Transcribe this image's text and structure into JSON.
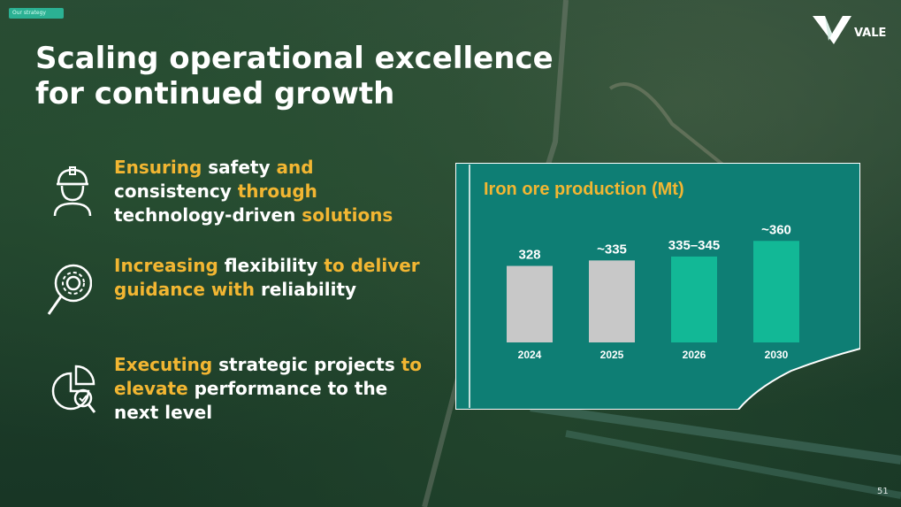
{
  "tag": "Our strategy",
  "title": "Scaling operational excellence for continued growth",
  "logo": {
    "text": "VALE"
  },
  "items": [
    {
      "segments": [
        {
          "text": "Ensuring ",
          "hl": true
        },
        {
          "text": "safety ",
          "hl": false
        },
        {
          "text": "and ",
          "hl": true
        },
        {
          "text": "consistency ",
          "hl": false
        },
        {
          "text": "through ",
          "hl": true
        },
        {
          "text": "technology-driven ",
          "hl": false
        },
        {
          "text": "solutions",
          "hl": true
        }
      ],
      "icon": "worker-helmet-icon"
    },
    {
      "segments": [
        {
          "text": "Increasing ",
          "hl": true
        },
        {
          "text": "flexibility ",
          "hl": false
        },
        {
          "text": "to deliver guidance with ",
          "hl": true
        },
        {
          "text": "reliability",
          "hl": false
        }
      ],
      "icon": "gear-magnifier-icon"
    },
    {
      "segments": [
        {
          "text": "Executing ",
          "hl": true
        },
        {
          "text": "strategic projects ",
          "hl": false
        },
        {
          "text": "to elevate ",
          "hl": true
        },
        {
          "text": "performance to the next level",
          "hl": false
        }
      ],
      "icon": "pie-chart-check-icon"
    }
  ],
  "chart_data": {
    "type": "bar",
    "title": "Iron ore production (Mt)",
    "categories": [
      "2024",
      "2025",
      "2026",
      "2030"
    ],
    "values": [
      328,
      335,
      340,
      360
    ],
    "labels": [
      "328",
      "~335",
      "335–345",
      "~360"
    ],
    "colors": [
      "#c8c8c8",
      "#c8c8c8",
      "#12b896",
      "#12b896"
    ],
    "ylim": [
      0,
      400
    ]
  },
  "colors": {
    "accent": "#f2b632",
    "panel": "#0e7e74",
    "bar_green": "#12b896"
  },
  "page_number": "51"
}
